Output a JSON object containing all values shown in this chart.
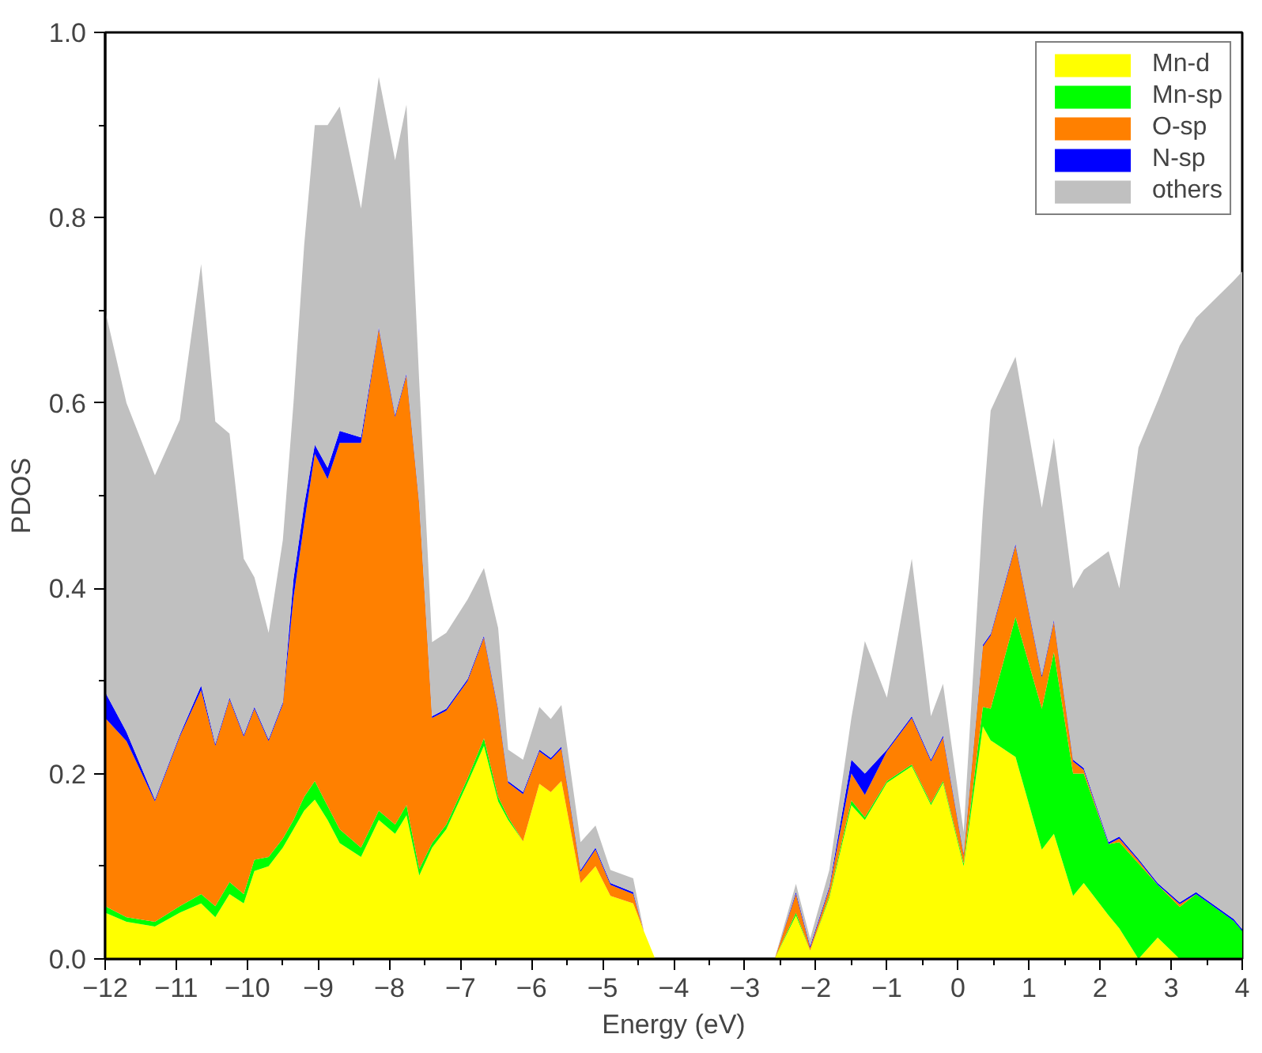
{
  "chart_data": {
    "type": "area",
    "stacked": true,
    "xlabel": "Energy (eV)",
    "ylabel": "PDOS",
    "x": [
      -12,
      -11.7,
      -11.3,
      -10.95,
      -10.65,
      -10.45,
      -10.25,
      -10.05,
      -9.9,
      -9.7,
      -9.5,
      -9.35,
      -9.2,
      -9.05,
      -8.87,
      -8.7,
      -8.4,
      -8.15,
      -7.92,
      -7.76,
      -7.58,
      -7.4,
      -7.2,
      -6.9,
      -6.67,
      -6.47,
      -6.33,
      -6.12,
      -5.89,
      -5.73,
      -5.58,
      -5.31,
      -5.1,
      -4.89,
      -4.57,
      -4.42,
      -4.26,
      -2.58,
      -2.28,
      -2.08,
      -1.81,
      -1.5,
      -1.31,
      -1.0,
      -0.65,
      -0.38,
      -0.21,
      0.08,
      0.35,
      0.46,
      0.81,
      1.18,
      1.35,
      1.62,
      1.77,
      2.12,
      2.27,
      2.54,
      2.81,
      3.12,
      3.35,
      3.88,
      4.0
    ],
    "series": [
      {
        "name": "Mn-d",
        "color": "#ffff00",
        "values": [
          0.05,
          0.04,
          0.035,
          0.05,
          0.06,
          0.045,
          0.07,
          0.06,
          0.095,
          0.1,
          0.12,
          0.14,
          0.16,
          0.172,
          0.15,
          0.125,
          0.11,
          0.15,
          0.135,
          0.155,
          0.09,
          0.12,
          0.14,
          0.19,
          0.23,
          0.17,
          0.15,
          0.127,
          0.189,
          0.18,
          0.192,
          0.082,
          0.1,
          0.068,
          0.06,
          0.03,
          0,
          0,
          0.047,
          0.009,
          0.066,
          0.166,
          0.15,
          0.19,
          0.208,
          0.166,
          0.19,
          0.1,
          0.251,
          0.236,
          0.218,
          0.118,
          0.135,
          0.068,
          0.082,
          0.047,
          0.033,
          0,
          0.023,
          0,
          0,
          0,
          0
        ]
      },
      {
        "name": "Mn-sp",
        "color": "#00ff00",
        "values": [
          0.007,
          0.005,
          0.005,
          0.007,
          0.01,
          0.012,
          0.013,
          0.01,
          0.012,
          0.01,
          0.01,
          0.01,
          0.015,
          0.02,
          0.015,
          0.015,
          0.01,
          0.01,
          0.01,
          0.011,
          0.007,
          0.005,
          0.005,
          0.005,
          0.008,
          0.005,
          0.003,
          0,
          0,
          0,
          0,
          0,
          0,
          0,
          0,
          0,
          0,
          0,
          0.003,
          0,
          0.002,
          0.005,
          0.003,
          0.002,
          0.002,
          0.002,
          0.002,
          0.003,
          0.021,
          0.034,
          0.151,
          0.152,
          0.196,
          0.132,
          0.118,
          0.077,
          0.093,
          0.103,
          0.057,
          0.056,
          0.07,
          0.041,
          0.03
        ]
      },
      {
        "name": "O-sp",
        "color": "#ff8000",
        "values": [
          0.203,
          0.19,
          0.13,
          0.183,
          0.22,
          0.173,
          0.197,
          0.17,
          0.163,
          0.125,
          0.145,
          0.24,
          0.295,
          0.353,
          0.353,
          0.417,
          0.437,
          0.52,
          0.44,
          0.464,
          0.393,
          0.135,
          0.123,
          0.105,
          0.109,
          0.093,
          0.037,
          0.051,
          0.035,
          0.035,
          0.035,
          0.012,
          0.018,
          0.012,
          0.01,
          0,
          0,
          0,
          0.02,
          0.003,
          0.008,
          0.029,
          0.024,
          0.032,
          0.05,
          0.045,
          0.047,
          0.009,
          0.065,
          0.079,
          0.077,
          0.034,
          0.033,
          0.013,
          0.004,
          0,
          0.004,
          0.003,
          0,
          0.003,
          0,
          0,
          0
        ]
      },
      {
        "name": "N-sp",
        "color": "#0000ff",
        "values": [
          0.028,
          0.01,
          0.002,
          0.002,
          0.005,
          0.002,
          0.002,
          0.002,
          0.002,
          0.002,
          0.002,
          0.02,
          0.02,
          0.01,
          0.012,
          0.013,
          0.006,
          0.002,
          0.002,
          0.002,
          0.002,
          0.002,
          0.002,
          0.002,
          0.002,
          0.002,
          0.002,
          0.002,
          0.002,
          0.002,
          0.002,
          0.002,
          0.002,
          0.002,
          0.002,
          0,
          0,
          0,
          0.002,
          0.002,
          0.002,
          0.015,
          0.023,
          0.002,
          0.002,
          0.002,
          0.002,
          0.002,
          0.002,
          0.002,
          0.002,
          0.002,
          0.002,
          0.002,
          0.002,
          0.002,
          0.002,
          0.002,
          0.002,
          0.002,
          0.002,
          0.002,
          0.002
        ]
      },
      {
        "name": "others",
        "color": "#c0c0c0",
        "values": [
          0.412,
          0.355,
          0.35,
          0.34,
          0.455,
          0.348,
          0.285,
          0.19,
          0.14,
          0.115,
          0.175,
          0.19,
          0.28,
          0.345,
          0.37,
          0.35,
          0.247,
          0.27,
          0.275,
          0.29,
          0.13,
          0.08,
          0.082,
          0.086,
          0.073,
          0.087,
          0.034,
          0.035,
          0.046,
          0.042,
          0.045,
          0.03,
          0.024,
          0.014,
          0.015,
          0,
          0,
          0,
          0.009,
          0.008,
          0.018,
          0.045,
          0.143,
          0.056,
          0.17,
          0.047,
          0.056,
          0.023,
          0.143,
          0.241,
          0.202,
          0.181,
          0.196,
          0.185,
          0.214,
          0.314,
          0.268,
          0.444,
          0.52,
          0.601,
          0.62,
          0.689,
          0.71
        ]
      }
    ],
    "xlim": [
      -12,
      4
    ],
    "xticks": [
      -12,
      -11,
      -10,
      -9,
      -8,
      -7,
      -6,
      -5,
      -4,
      -3,
      -2,
      -1,
      0,
      1,
      2,
      3,
      4
    ],
    "ylim": [
      0,
      1.0
    ],
    "yticks": [
      {
        "value": 0,
        "label": "0.0"
      },
      {
        "value": 0.2,
        "label": "0.2"
      },
      {
        "value": 0.4,
        "label": "0.4"
      },
      {
        "value": 0.6,
        "label": "0.6"
      },
      {
        "value": 0.8,
        "label": "0.8"
      },
      {
        "value": 1.0,
        "label": "1.0"
      }
    ],
    "grid": false,
    "legend": "top right"
  }
}
